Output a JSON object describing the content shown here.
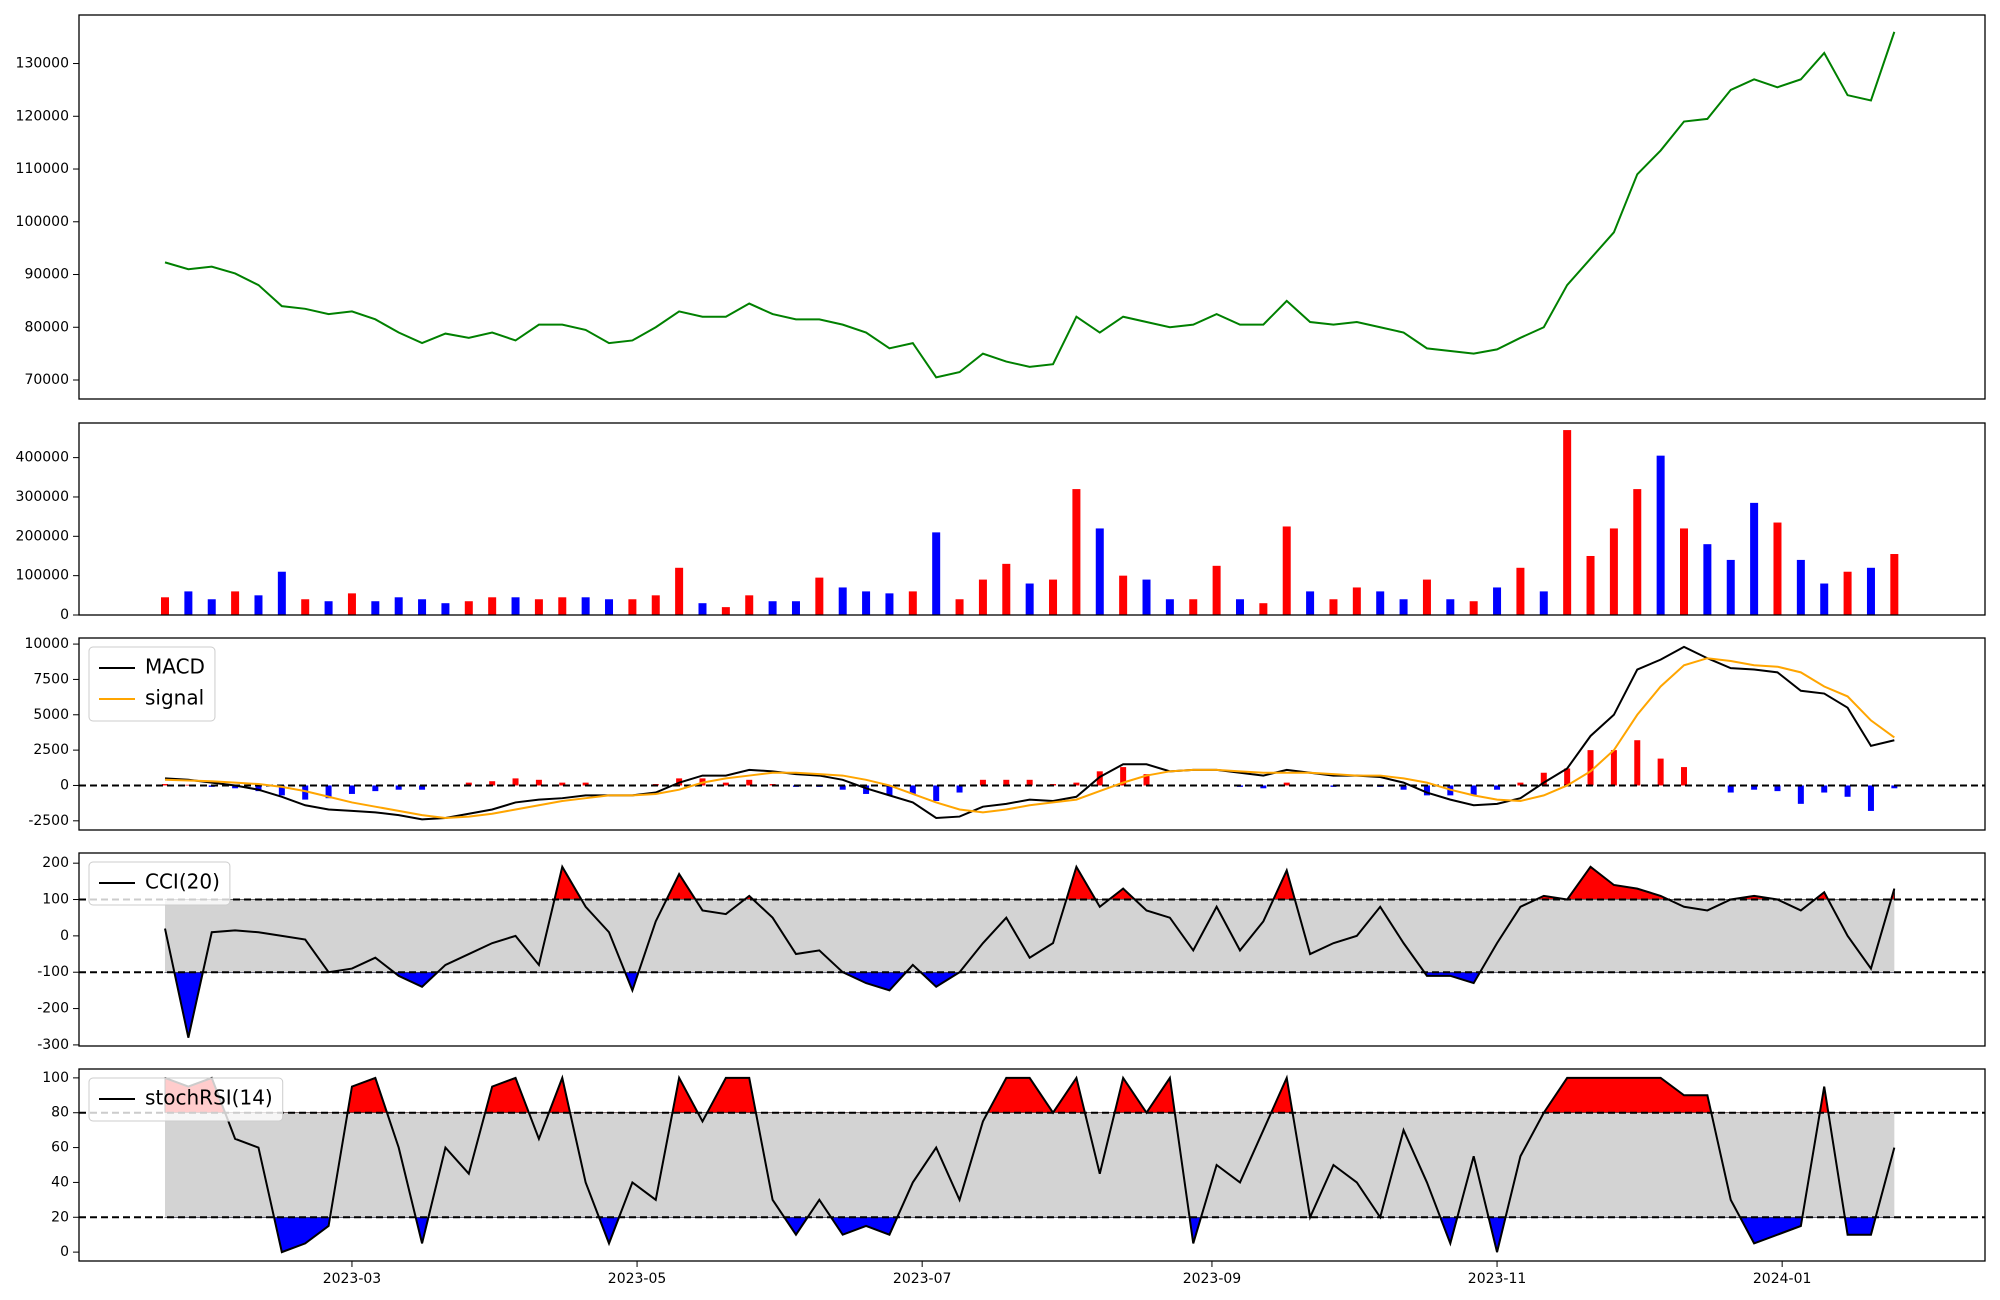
{
  "chart_data": [
    {
      "type": "line",
      "color": "#008000",
      "xlim": [
        0.6,
        408.4
      ],
      "ylim": [
        66400,
        139200
      ],
      "yticks": [
        70000,
        80000,
        90000,
        100000,
        110000,
        120000,
        130000
      ],
      "x": [
        19,
        24,
        29,
        34,
        39,
        44,
        49,
        54,
        59,
        64,
        69,
        74,
        79,
        84,
        89,
        94,
        99,
        104,
        109,
        114,
        119,
        124,
        129,
        134,
        139,
        144,
        149,
        154,
        159,
        164,
        169,
        174,
        179,
        184,
        189,
        194,
        199,
        204,
        209,
        214,
        219,
        224,
        229,
        234,
        239,
        244,
        249,
        254,
        259,
        264,
        269,
        274,
        279,
        284,
        289,
        294,
        299,
        304,
        309,
        314,
        319,
        324,
        329,
        334,
        339,
        344,
        349,
        354,
        359,
        364,
        369,
        374,
        379,
        384,
        389
      ],
      "values": [
        92300,
        91000,
        91500,
        90200,
        88000,
        84000,
        83500,
        82500,
        83000,
        81500,
        79000,
        77000,
        78800,
        78000,
        79000,
        77500,
        80500,
        80500,
        79500,
        77000,
        77500,
        80000,
        83000,
        82000,
        82000,
        84500,
        82500,
        81500,
        81500,
        80500,
        79000,
        76000,
        77000,
        70500,
        71500,
        75000,
        73500,
        72500,
        73000,
        82000,
        79000,
        82000,
        81000,
        80000,
        80500,
        82500,
        80500,
        80500,
        85000,
        81000,
        80500,
        81000,
        80000,
        79000,
        76000,
        75500,
        75000,
        75800,
        78000,
        80000,
        88000,
        93000,
        98000,
        109000,
        113500,
        119000,
        119500,
        125000,
        127000,
        125500,
        127000,
        132000,
        124000,
        123000,
        136000
      ]
    },
    {
      "type": "bar",
      "xlim": [
        0.6,
        408.4
      ],
      "ylim": [
        0,
        488000
      ],
      "yticks": [
        0,
        100000,
        200000,
        300000,
        400000
      ],
      "x": [
        19,
        24,
        29,
        34,
        39,
        44,
        49,
        54,
        59,
        64,
        69,
        74,
        79,
        84,
        89,
        94,
        99,
        104,
        109,
        114,
        119,
        124,
        129,
        134,
        139,
        144,
        149,
        154,
        159,
        164,
        169,
        174,
        179,
        184,
        189,
        194,
        199,
        204,
        209,
        214,
        219,
        224,
        229,
        234,
        239,
        244,
        249,
        254,
        259,
        264,
        269,
        274,
        279,
        284,
        289,
        294,
        299,
        304,
        309,
        314,
        319,
        324,
        329,
        334,
        339,
        344,
        349,
        354,
        359,
        364,
        369,
        374,
        379,
        384,
        389
      ],
      "values": [
        45000,
        60000,
        40000,
        60000,
        50000,
        110000,
        40000,
        35000,
        55000,
        35000,
        45000,
        40000,
        30000,
        35000,
        45000,
        45000,
        40000,
        45000,
        45000,
        40000,
        40000,
        50000,
        120000,
        30000,
        20000,
        50000,
        35000,
        35000,
        95000,
        70000,
        60000,
        55000,
        60000,
        210000,
        40000,
        90000,
        130000,
        80000,
        90000,
        320000,
        220000,
        100000,
        90000,
        40000,
        40000,
        125000,
        40000,
        30000,
        225000,
        60000,
        40000,
        70000,
        60000,
        40000,
        90000,
        40000,
        35000,
        70000,
        120000,
        60000,
        470000,
        150000,
        220000,
        320000,
        405000,
        220000,
        180000,
        140000,
        285000,
        235000,
        140000,
        80000,
        110000,
        120000,
        155000
      ],
      "colors": [
        "#ff0000",
        "#0000ff",
        "#0000ff",
        "#ff0000",
        "#0000ff",
        "#0000ff",
        "#ff0000",
        "#0000ff",
        "#ff0000",
        "#0000ff",
        "#0000ff",
        "#0000ff",
        "#0000ff",
        "#ff0000",
        "#ff0000",
        "#0000ff",
        "#ff0000",
        "#ff0000",
        "#0000ff",
        "#0000ff",
        "#ff0000",
        "#ff0000",
        "#ff0000",
        "#0000ff",
        "#ff0000",
        "#ff0000",
        "#0000ff",
        "#0000ff",
        "#ff0000",
        "#0000ff",
        "#0000ff",
        "#0000ff",
        "#ff0000",
        "#0000ff",
        "#ff0000",
        "#ff0000",
        "#ff0000",
        "#0000ff",
        "#ff0000",
        "#ff0000",
        "#0000ff",
        "#ff0000",
        "#0000ff",
        "#0000ff",
        "#ff0000",
        "#ff0000",
        "#0000ff",
        "#ff0000",
        "#ff0000",
        "#0000ff",
        "#ff0000",
        "#ff0000",
        "#0000ff",
        "#0000ff",
        "#ff0000",
        "#0000ff",
        "#ff0000",
        "#0000ff",
        "#ff0000",
        "#0000ff",
        "#ff0000",
        "#ff0000",
        "#ff0000",
        "#ff0000",
        "#0000ff",
        "#ff0000",
        "#0000ff",
        "#0000ff",
        "#0000ff",
        "#ff0000",
        "#0000ff",
        "#0000ff",
        "#ff0000",
        "#0000ff",
        "#ff0000"
      ]
    },
    {
      "type": "line",
      "xlim": [
        0.6,
        408.4
      ],
      "ylim": [
        -3150,
        10430
      ],
      "yticks": [
        -2500,
        0,
        2500,
        5000,
        7500,
        10000
      ],
      "hlines": [
        0
      ],
      "legend": "upper left",
      "x": [
        19,
        24,
        29,
        34,
        39,
        44,
        49,
        54,
        59,
        64,
        69,
        74,
        79,
        84,
        89,
        94,
        99,
        104,
        109,
        114,
        119,
        124,
        129,
        134,
        139,
        144,
        149,
        154,
        159,
        164,
        169,
        174,
        179,
        184,
        189,
        194,
        199,
        204,
        209,
        214,
        219,
        224,
        229,
        234,
        239,
        244,
        249,
        254,
        259,
        264,
        269,
        274,
        279,
        284,
        289,
        294,
        299,
        304,
        309,
        314,
        319,
        324,
        329,
        334,
        339,
        344,
        349,
        354,
        359,
        364,
        369,
        374,
        379,
        384,
        389
      ],
      "series": [
        {
          "name": "MACD",
          "color": "#000000",
          "values": [
            500,
            400,
            200,
            0,
            -300,
            -800,
            -1400,
            -1700,
            -1800,
            -1900,
            -2100,
            -2400,
            -2300,
            -2000,
            -1700,
            -1200,
            -1000,
            -900,
            -700,
            -700,
            -700,
            -500,
            200,
            700,
            700,
            1100,
            1000,
            800,
            700,
            400,
            -200,
            -700,
            -1200,
            -2300,
            -2200,
            -1500,
            -1300,
            -1000,
            -1100,
            -800,
            600,
            1500,
            1500,
            1000,
            1100,
            1100,
            900,
            700,
            1100,
            900,
            700,
            700,
            600,
            200,
            -500,
            -1000,
            -1400,
            -1300,
            -900,
            200,
            1200,
            3500,
            5000,
            8200,
            8900,
            9800,
            9000,
            8300,
            8200,
            8000,
            6700,
            6500,
            5500,
            2800,
            3200
          ]
        },
        {
          "name": "signal",
          "color": "#ffa500",
          "values": [
            400,
            350,
            300,
            200,
            100,
            -100,
            -400,
            -800,
            -1200,
            -1500,
            -1800,
            -2100,
            -2300,
            -2200,
            -2000,
            -1700,
            -1400,
            -1100,
            -900,
            -700,
            -700,
            -600,
            -300,
            200,
            500,
            700,
            900,
            900,
            800,
            700,
            400,
            0,
            -600,
            -1200,
            -1700,
            -1900,
            -1700,
            -1400,
            -1200,
            -1000,
            -400,
            200,
            700,
            1000,
            1100,
            1100,
            1000,
            900,
            900,
            900,
            800,
            700,
            700,
            500,
            200,
            -300,
            -700,
            -1000,
            -1100,
            -700,
            0,
            1000,
            2500,
            5000,
            7000,
            8500,
            9000,
            8800,
            8500,
            8400,
            8000,
            7000,
            6300,
            4600,
            3400
          ]
        }
      ],
      "histogram": {
        "pos_color": "#ff0000",
        "neg_color": "#0000ff",
        "values": [
          100,
          50,
          -100,
          -200,
          -400,
          -700,
          -1000,
          -900,
          -600,
          -400,
          -300,
          -300,
          0,
          200,
          300,
          500,
          400,
          200,
          200,
          0,
          0,
          100,
          500,
          500,
          200,
          400,
          100,
          -100,
          -100,
          -300,
          -600,
          -700,
          -600,
          -1100,
          -500,
          400,
          400,
          400,
          100,
          200,
          1000,
          1300,
          800,
          0,
          0,
          0,
          -100,
          -200,
          200,
          0,
          -100,
          0,
          -100,
          -300,
          -700,
          -700,
          -700,
          -300,
          200,
          900,
          1200,
          2500,
          2500,
          3200,
          1900,
          1300,
          0,
          -500,
          -300,
          -400,
          -1300,
          -500,
          -800,
          -1800,
          -200
        ]
      }
    },
    {
      "type": "line",
      "xlim": [
        0.6,
        408.4
      ],
      "ylim": [
        -303,
        228
      ],
      "yticks": [
        -300,
        -200,
        -100,
        0,
        100,
        200
      ],
      "band": [
        -100,
        100
      ],
      "band_color": "#d3d3d3",
      "above_color": "#ff0000",
      "below_color": "#0000ff",
      "legend": "upper left",
      "x": [
        19,
        24,
        29,
        34,
        39,
        44,
        49,
        54,
        59,
        64,
        69,
        74,
        79,
        84,
        89,
        94,
        99,
        104,
        109,
        114,
        119,
        124,
        129,
        134,
        139,
        144,
        149,
        154,
        159,
        164,
        169,
        174,
        179,
        184,
        189,
        194,
        199,
        204,
        209,
        214,
        219,
        224,
        229,
        234,
        239,
        244,
        249,
        254,
        259,
        264,
        269,
        274,
        279,
        284,
        289,
        294,
        299,
        304,
        309,
        314,
        319,
        324,
        329,
        334,
        339,
        344,
        349,
        354,
        359,
        364,
        369,
        374,
        379,
        384,
        389
      ],
      "series": [
        {
          "name": "CCI(20)",
          "color": "#000000",
          "values": [
            20,
            -280,
            10,
            15,
            10,
            0,
            -10,
            -100,
            -90,
            -60,
            -110,
            -140,
            -80,
            -50,
            -20,
            0,
            -80,
            190,
            80,
            10,
            -150,
            40,
            170,
            70,
            60,
            110,
            50,
            -50,
            -40,
            -100,
            -130,
            -150,
            -80,
            -140,
            -100,
            -20,
            50,
            -60,
            -20,
            190,
            80,
            130,
            70,
            50,
            -40,
            80,
            -40,
            40,
            180,
            -50,
            -20,
            0,
            80,
            -20,
            -110,
            -110,
            -130,
            -20,
            80,
            110,
            100,
            190,
            140,
            130,
            110,
            80,
            70,
            100,
            110,
            100,
            70,
            120,
            0,
            -90,
            130
          ]
        }
      ]
    },
    {
      "type": "line",
      "xlim": [
        0.6,
        408.4
      ],
      "ylim": [
        -5.1,
        105.1
      ],
      "yticks": [
        0,
        20,
        40,
        60,
        80,
        100
      ],
      "band": [
        20,
        80
      ],
      "band_color": "#d3d3d3",
      "above_color": "#ff0000",
      "below_color": "#0000ff",
      "legend": "upper left",
      "xticks": [
        {
          "value": 59,
          "label": "2023-03"
        },
        {
          "value": 120,
          "label": "2023-05"
        },
        {
          "value": 181,
          "label": "2023-07"
        },
        {
          "value": 243,
          "label": "2023-09"
        },
        {
          "value": 304,
          "label": "2023-11"
        },
        {
          "value": 365,
          "label": "2024-01"
        }
      ],
      "x": [
        19,
        24,
        29,
        34,
        39,
        44,
        49,
        54,
        59,
        64,
        69,
        74,
        79,
        84,
        89,
        94,
        99,
        104,
        109,
        114,
        119,
        124,
        129,
        134,
        139,
        144,
        149,
        154,
        159,
        164,
        169,
        174,
        179,
        184,
        189,
        194,
        199,
        204,
        209,
        214,
        219,
        224,
        229,
        234,
        239,
        244,
        249,
        254,
        259,
        264,
        269,
        274,
        279,
        284,
        289,
        294,
        299,
        304,
        309,
        314,
        319,
        324,
        329,
        334,
        339,
        344,
        349,
        354,
        359,
        364,
        369,
        374,
        379,
        384,
        389
      ],
      "series": [
        {
          "name": "stochRSI(14)",
          "color": "#000000",
          "values": [
            100,
            95,
            100,
            65,
            60,
            0,
            5,
            15,
            95,
            100,
            60,
            5,
            60,
            45,
            95,
            100,
            65,
            100,
            40,
            5,
            40,
            30,
            100,
            75,
            100,
            100,
            30,
            10,
            30,
            10,
            15,
            10,
            40,
            60,
            30,
            75,
            100,
            100,
            80,
            100,
            45,
            100,
            80,
            100,
            5,
            50,
            40,
            70,
            100,
            20,
            50,
            40,
            20,
            70,
            40,
            5,
            55,
            0,
            55,
            80,
            100,
            100,
            100,
            100,
            100,
            90,
            90,
            30,
            5,
            10,
            15,
            95,
            10,
            10,
            60
          ]
        }
      ]
    }
  ]
}
